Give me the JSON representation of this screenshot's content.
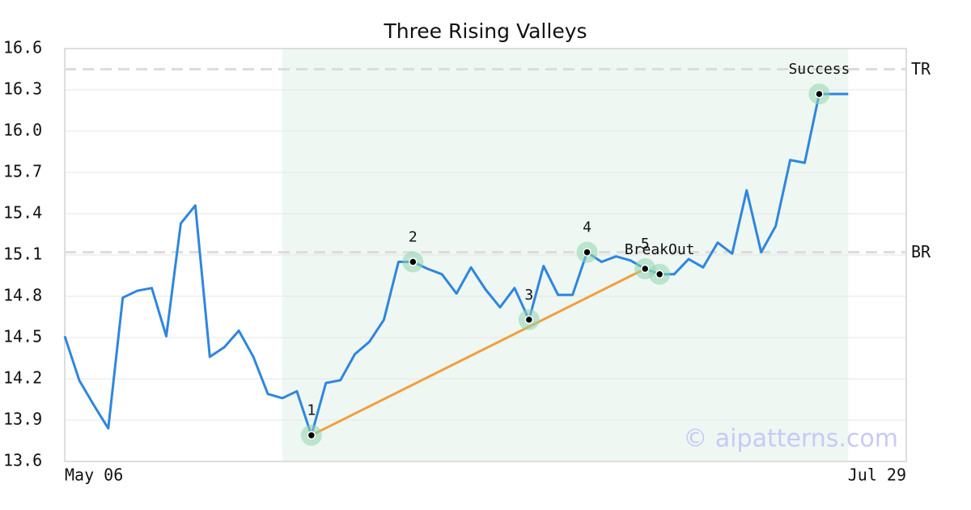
{
  "chart_data": {
    "type": "line",
    "title": "Three Rising Valleys",
    "categories": [
      "May 06",
      null,
      null,
      null,
      null,
      null,
      null,
      null,
      null,
      null,
      null,
      null,
      null,
      null,
      null,
      null,
      null,
      null,
      null,
      null,
      null,
      null,
      null,
      null,
      null,
      null,
      null,
      null,
      null,
      null,
      null,
      null,
      null,
      null,
      null,
      null,
      null,
      null,
      null,
      null,
      null,
      null,
      null,
      null,
      null,
      null,
      null,
      null,
      null,
      null,
      null,
      null,
      null,
      null,
      null,
      null,
      null,
      null,
      "Jul 29"
    ],
    "series": [
      {
        "color": "#2e86de",
        "values": [
          14.51,
          14.19,
          14.01,
          13.84,
          14.79,
          14.84,
          14.86,
          14.51,
          15.33,
          15.46,
          14.36,
          14.43,
          14.55,
          14.36,
          14.09,
          14.06,
          14.11,
          13.79,
          14.17,
          14.19,
          14.38,
          14.47,
          14.63,
          15.05,
          15.05,
          15.0,
          14.96,
          14.82,
          15.01,
          14.85,
          14.72,
          14.86,
          14.63,
          15.02,
          14.81,
          14.81,
          15.12,
          15.05,
          15.09,
          15.06,
          15.0,
          14.96,
          14.96,
          15.07,
          15.01,
          15.19,
          15.11,
          15.57,
          15.12,
          15.31,
          15.79,
          15.77,
          16.27,
          16.27,
          16.27,
          null,
          null,
          null,
          null
        ]
      }
    ],
    "points": [
      {
        "label": "1",
        "index": 17
      },
      {
        "label": "2",
        "index": 24
      },
      {
        "label": "3",
        "index": 32
      },
      {
        "label": "4",
        "index": 36
      },
      {
        "label": "5",
        "index": 40
      },
      {
        "label": "BreakOut",
        "index": 41
      },
      {
        "label": "Success",
        "index": 52
      }
    ],
    "trendline": {
      "from": 17,
      "to": 40,
      "color": "#f0a040"
    },
    "highlight": {
      "from": 15,
      "to": 54,
      "color": "#eef7f2"
    },
    "hlines": [
      {
        "label": "TR",
        "value": 16.45
      },
      {
        "label": "BR",
        "value": 15.12
      }
    ],
    "ylim": [
      13.6,
      16.6
    ],
    "yticks": [
      13.6,
      13.9,
      14.2,
      14.5,
      14.8,
      15.1,
      15.4,
      15.7,
      {
        "value": 16.0,
        "label": "16.0"
      },
      16.3,
      16.6
    ],
    "grid": true,
    "watermark": "© aipatterns.com"
  }
}
